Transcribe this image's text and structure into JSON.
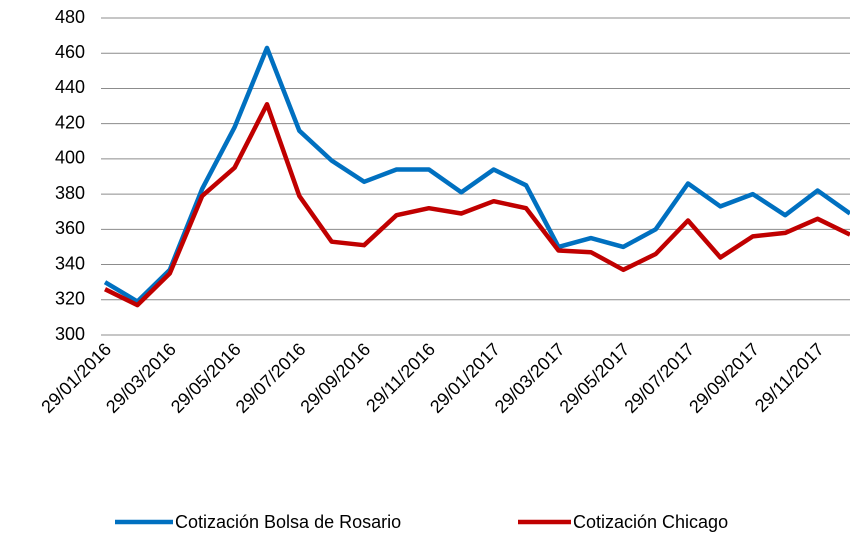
{
  "chart_data": {
    "type": "line",
    "categories": [
      "29/01/2016",
      null,
      "29/03/2016",
      null,
      "29/05/2016",
      null,
      "29/07/2016",
      null,
      "29/09/2016",
      null,
      "29/11/2016",
      null,
      "29/01/2017",
      null,
      "29/03/2017",
      null,
      "29/05/2017",
      null,
      "29/07/2017",
      null,
      "29/09/2017",
      null,
      "29/11/2017",
      null
    ],
    "series": [
      {
        "name": "Cotización Bolsa de Rosario",
        "color": "#0070c0",
        "values": [
          330,
          319,
          337,
          383,
          418,
          463,
          416,
          399,
          387,
          394,
          394,
          381,
          394,
          385,
          350,
          355,
          350,
          360,
          386,
          373,
          380,
          368,
          382,
          369
        ]
      },
      {
        "name": "Cotización Chicago",
        "color": "#c00000",
        "values": [
          326,
          317,
          335,
          379,
          395,
          431,
          379,
          353,
          351,
          368,
          372,
          369,
          376,
          372,
          348,
          347,
          337,
          346,
          365,
          344,
          356,
          358,
          366,
          357
        ]
      }
    ],
    "ylim": [
      300,
      480
    ],
    "yticks": [
      300,
      320,
      340,
      360,
      380,
      400,
      420,
      440,
      460,
      480
    ],
    "grid": true
  }
}
